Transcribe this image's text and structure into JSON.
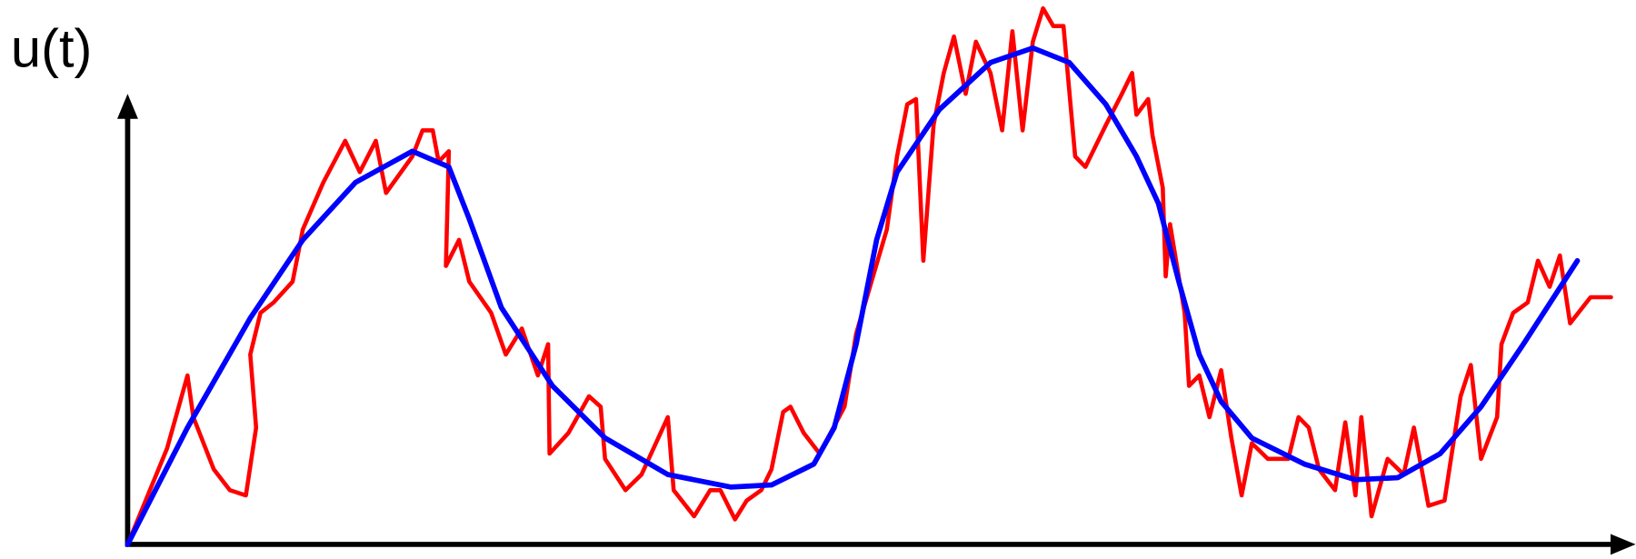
{
  "chart_data": {
    "type": "line",
    "ylabel": "u(t)",
    "xlim": [
      0,
      102
    ],
    "ylim": [
      0,
      104
    ],
    "series": [
      {
        "color": "#ff0000",
        "x": [
          0,
          2.7,
          4.1,
          4.5,
          5.9,
          7,
          8.1,
          8.8,
          8.4,
          9.1,
          10,
          11.3,
          12,
          13.4,
          14.9,
          15.9,
          17,
          17.7,
          19.5,
          20.2,
          20.9,
          21.3,
          22,
          21.8,
          22.7,
          23.4,
          24.9,
          25.9,
          27,
          28.1,
          28.8,
          28.9,
          30.2,
          31.6,
          32.4,
          32.7,
          34.1,
          35.2,
          37,
          37.4,
          38.8,
          39.9,
          40.6,
          41.6,
          42.4,
          43.4,
          44.1,
          44.9,
          45.4,
          46.3,
          47.4,
          49.1,
          49.9,
          52,
          52.7,
          53.4,
          54,
          54.5,
          55.2,
          55.9,
          56.6,
          57.4,
          58.1,
          59.1,
          59.9,
          60.6,
          61.3,
          62,
          62.7,
          63.4,
          64.1,
          64.9,
          65.6,
          67,
          68.1,
          68.8,
          69.1,
          69.9,
          70.2,
          70.9,
          71.1,
          71.4,
          72.4,
          72.7,
          73.4,
          74.1,
          74.9,
          75.6,
          76.3,
          77,
          78.1,
          79.5,
          80.2,
          80.9,
          81.6,
          82.7,
          83.4,
          84.1,
          84.5,
          85.2,
          86.3,
          87.4,
          88.1,
          89.1,
          90.2,
          91.3,
          92,
          92.7,
          93.8,
          94.1,
          94.9,
          95.9,
          96.6,
          97.4,
          98.1,
          98.8,
          100.2,
          101.6
        ],
        "values": [
          0,
          18.4,
          32.4,
          24.4,
          14.4,
          10.4,
          9.4,
          22.4,
          36.4,
          44.4,
          46.4,
          50.4,
          60.4,
          69.4,
          77.4,
          71.4,
          77.4,
          67.4,
          74.4,
          79.4,
          79.4,
          73.4,
          75.4,
          53.4,
          58.4,
          50.4,
          44.4,
          36.4,
          41.4,
          32.4,
          38.4,
          17.4,
          21.4,
          28.4,
          26.4,
          16.4,
          10.4,
          13.4,
          24.4,
          10.4,
          5.4,
          10.4,
          10.4,
          4.8,
          8.4,
          10.4,
          14.4,
          25.4,
          26.4,
          21.4,
          17.4,
          26.4,
          40.4,
          60.4,
          74.4,
          84.4,
          85.4,
          54.4,
          80.4,
          90.4,
          97.4,
          86.4,
          96.4,
          90.4,
          79.4,
          98.4,
          79.4,
          96.4,
          102.8,
          99.4,
          99.4,
          74.4,
          72.4,
          80.4,
          86.4,
          90.4,
          82.4,
          85.4,
          78.4,
          68.4,
          51.4,
          61.4,
          44.4,
          30.4,
          32.4,
          24.4,
          33.4,
          20.4,
          9.4,
          19.4,
          16.4,
          16.4,
          24.4,
          22.4,
          14.4,
          10.4,
          23.4,
          9.4,
          24.4,
          5.4,
          16.4,
          13.4,
          22.4,
          7.4,
          8.4,
          28.4,
          34.4,
          16.4,
          24.4,
          38.4,
          44.4,
          46.4,
          54.4,
          49.4,
          55.4,
          42.4,
          47.4,
          47.4
        ]
      },
      {
        "color": "#0000ff",
        "x": [
          0,
          4.1,
          8.4,
          12,
          15.6,
          19.5,
          22,
          23.4,
          25.6,
          29.1,
          32.7,
          37,
          41.3,
          44.1,
          47,
          48.4,
          49.9,
          51.3,
          52.7,
          55.6,
          59.1,
          62,
          64.5,
          67,
          69.1,
          70.6,
          72,
          73.4,
          74.9,
          77,
          80.6,
          84.1,
          87,
          89.9,
          92.7,
          95.6,
          99.3
        ],
        "values": [
          0,
          22.4,
          43.4,
          58.4,
          69.4,
          75.4,
          72.4,
          62.4,
          45.4,
          30.4,
          20.4,
          13.4,
          11,
          11.4,
          15.4,
          22.4,
          38.4,
          58.4,
          71.4,
          83.4,
          92.4,
          95.2,
          92.4,
          84.4,
          74.4,
          65.4,
          50.4,
          36.4,
          27.4,
          20.4,
          15.4,
          12.4,
          12.8,
          17.4,
          26.4,
          38.4,
          54.4
        ]
      }
    ]
  }
}
